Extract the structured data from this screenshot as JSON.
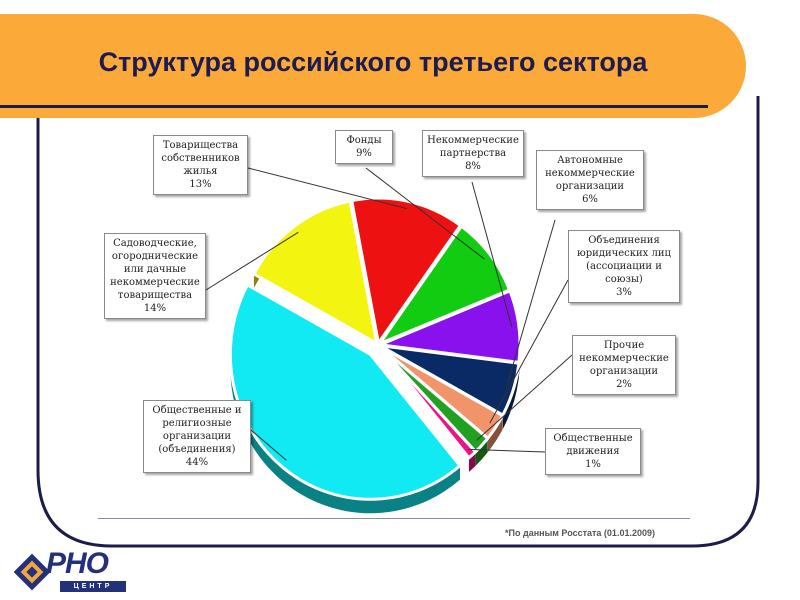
{
  "title": "Структура российского третьего сектора",
  "footnote": "*По данным Росстата (01.01.2009)",
  "logo": {
    "main": "РНО",
    "sub": "ЦЕНТР"
  },
  "colors": {
    "banner": "#fbaa3a",
    "title": "#1c1c52",
    "frame": "#1c1c4a"
  },
  "chart_data": {
    "type": "pie",
    "title": "",
    "series": [
      {
        "key": "tsj",
        "label": [
          "Товарищества",
          "собственников",
          "жилья"
        ],
        "percent": "13%",
        "value": 13,
        "color": "#ee1111"
      },
      {
        "key": "fondy",
        "label": [
          "Фонды"
        ],
        "percent": "9%",
        "value": 9,
        "color": "#11cc11"
      },
      {
        "key": "np",
        "label": [
          "Некоммерческие",
          "партнерства"
        ],
        "percent": "8%",
        "value": 8,
        "color": "#8811ee"
      },
      {
        "key": "ano",
        "label": [
          "Автономные",
          "некоммерческие",
          "организации"
        ],
        "percent": "6%",
        "value": 6,
        "color": "#0a2a66"
      },
      {
        "key": "ojul",
        "label": [
          "Объединения",
          "юридических лиц",
          "(ассоциации и",
          "союзы)"
        ],
        "percent": "3%",
        "value": 3,
        "color": "#f2946a"
      },
      {
        "key": "prochie",
        "label": [
          "Прочие",
          "некоммерческие",
          "организации"
        ],
        "percent": "2%",
        "value": 2,
        "color": "#22a022"
      },
      {
        "key": "dvizh",
        "label": [
          "Общественные",
          "движения"
        ],
        "percent": "1%",
        "value": 1,
        "color": "#ee1188"
      },
      {
        "key": "obsh",
        "label": [
          "Общественные и",
          "религиозные",
          "организации",
          "(объединения)"
        ],
        "percent": "44%",
        "value": 44,
        "color": "#11eaf2"
      },
      {
        "key": "sad",
        "label": [
          "Садоводческие,",
          "огороднические",
          "или дачные",
          "некоммерческие",
          "товарищества"
        ],
        "percent": "14%",
        "value": 14,
        "color": "#f4f411"
      }
    ]
  }
}
